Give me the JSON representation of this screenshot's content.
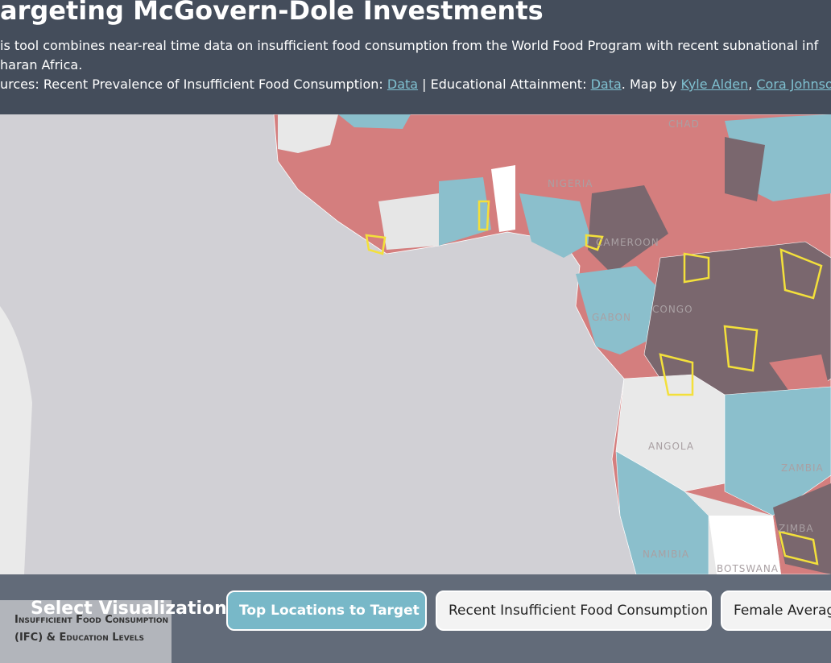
{
  "header": {
    "title": "argeting McGovern-Dole Investments",
    "description": [
      "is tool combines near-real time data on insufficient food consumption from the World Food Program with recent subnational inf",
      "haran Africa."
    ],
    "sources": {
      "prefix": "urces: Recent Prevalence of Insufficient Food Consumption: ",
      "link1": "Data",
      "mid": " | Educational Attainment: ",
      "link2": "Data",
      "mapby": ". Map by ",
      "author1": "Kyle Alden",
      "sep": ", ",
      "author2": "Cora Johnso"
    }
  },
  "map": {
    "labels": [
      "CHAD",
      "NIGERIA",
      "CAMEROON",
      "GABON",
      "CONGO",
      "ANGOLA",
      "ZAMBIA",
      "NAMIBIA",
      "BOTSWANA",
      "ZIMBA"
    ]
  },
  "legend": {
    "title": "Insufficient Food Consumption (IFC) & Education Levels"
  },
  "controls": {
    "label": "Select Visualization:",
    "buttons": [
      "Top Locations to Target",
      "Recent Insufficient Food Consumption",
      "Female Average"
    ]
  }
}
